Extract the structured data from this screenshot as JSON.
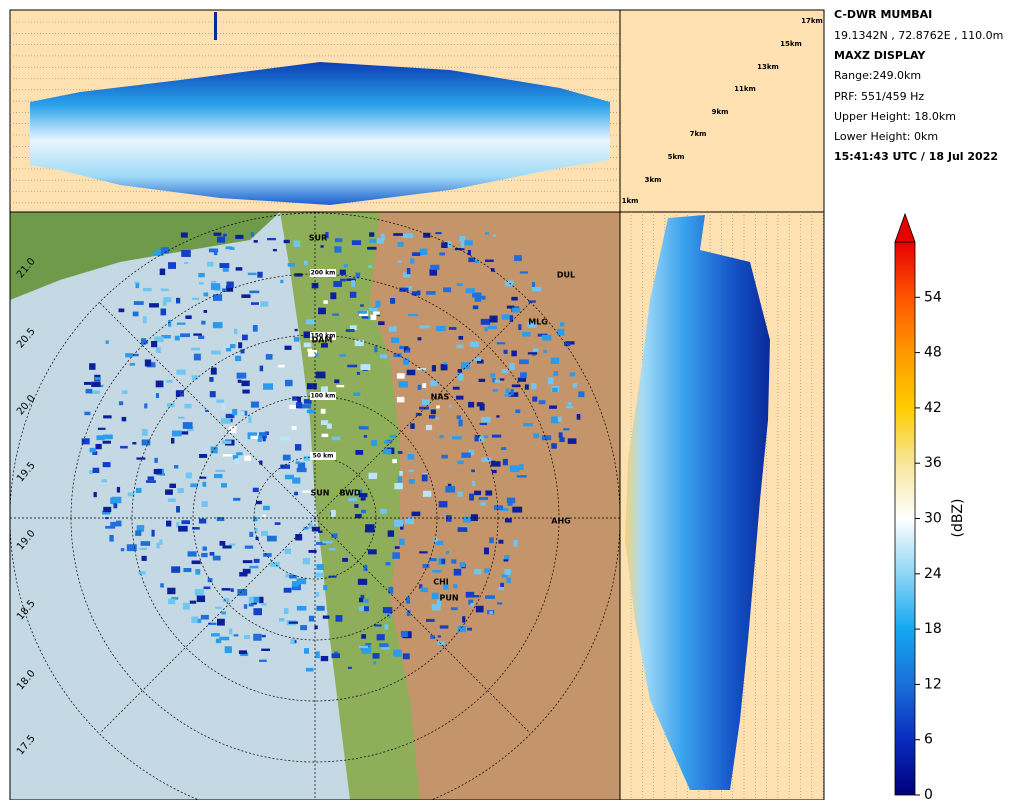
{
  "header": {
    "station": "C-DWR MUMBAI",
    "coords": "19.1342N , 72.8762E , 110.0m",
    "product": "MAXZ DISPLAY",
    "range": "Range:249.0km",
    "prf": "PRF: 551/459 Hz",
    "upper_height": "Upper Height: 18.0km",
    "lower_height": "Lower Height: 0km",
    "timestamp": "15:41:43 UTC / 18 Jul 2022"
  },
  "height_labels": [
    "1km",
    "3km",
    "5km",
    "7km",
    "9km",
    "11km",
    "13km",
    "15km",
    "17km"
  ],
  "ring_labels": [
    "50 km",
    "100 km",
    "150 km",
    "200 km"
  ],
  "latitude_labels": [
    "21.0",
    "20.5",
    "20.0",
    "19.5",
    "19.0",
    "18.5",
    "18.0",
    "17.5"
  ],
  "cities": [
    "SUR",
    "DAM",
    "NAS",
    "MLG",
    "DUL",
    "AHG",
    "CHI",
    "PUN",
    "SUN",
    "BWD"
  ],
  "colorbar": {
    "label": "(dBZ)",
    "lim": [
      0,
      60
    ],
    "ticks": [
      0,
      6,
      12,
      18,
      24,
      30,
      36,
      42,
      48,
      54
    ]
  }
}
